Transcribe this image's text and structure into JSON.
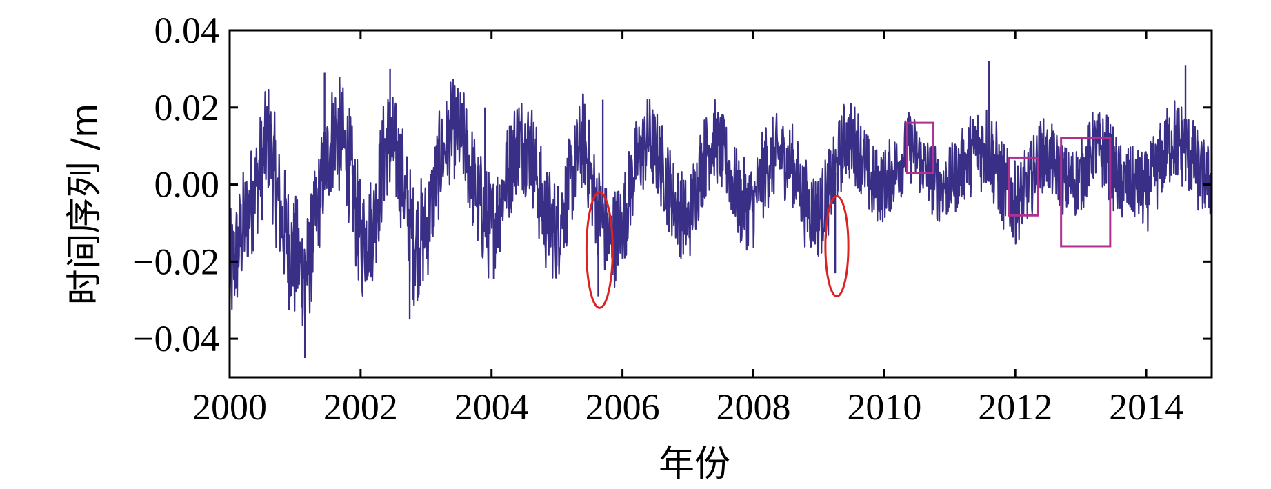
{
  "chart_data": {
    "type": "line",
    "title": "",
    "xlabel": "年份",
    "ylabel": "时间序列 /m",
    "xlim": [
      2000,
      2015
    ],
    "ylim": [
      -0.05,
      0.04
    ],
    "x_ticks": [
      2000,
      2002,
      2004,
      2006,
      2008,
      2010,
      2012,
      2014
    ],
    "x_tick_labels": [
      "2000",
      "2002",
      "2004",
      "2006",
      "2008",
      "2010",
      "2012",
      "2014"
    ],
    "y_ticks": [
      0.04,
      0.02,
      0.0,
      -0.02,
      -0.04
    ],
    "y_tick_labels": [
      "0.04",
      "0.02",
      "0.00",
      "−0.02",
      "−0.04"
    ],
    "grid": false,
    "series_color": "#3a2f86",
    "series": [
      {
        "x": [
          2000.0,
          2000.2,
          2000.4,
          2000.6,
          2000.8,
          2001.0,
          2001.2,
          2001.4,
          2001.6,
          2001.8,
          2002.0,
          2002.2,
          2002.4,
          2002.6,
          2002.8,
          2003.0,
          2003.2,
          2003.4,
          2003.6,
          2003.8,
          2004.0,
          2004.2,
          2004.4,
          2004.6,
          2004.8,
          2005.0,
          2005.2,
          2005.4,
          2005.6,
          2005.8,
          2006.0,
          2006.2,
          2006.4,
          2006.6,
          2006.8,
          2007.0,
          2007.2,
          2007.4,
          2007.6,
          2007.8,
          2008.0,
          2008.2,
          2008.4,
          2008.6,
          2008.8,
          2009.0,
          2009.2,
          2009.4,
          2009.6,
          2009.8,
          2010.0,
          2010.2,
          2010.4,
          2010.6,
          2010.8,
          2011.0,
          2011.2,
          2011.4,
          2011.6,
          2011.8,
          2012.0,
          2012.2,
          2012.4,
          2012.6,
          2012.8,
          2013.0,
          2013.2,
          2013.4,
          2013.6,
          2013.8,
          2014.0,
          2014.2,
          2014.4,
          2014.6,
          2014.8,
          2015.0
        ],
        "y": [
          -0.025,
          -0.012,
          0.0,
          0.012,
          -0.01,
          -0.02,
          -0.022,
          0.0,
          0.015,
          0.008,
          -0.015,
          -0.01,
          0.012,
          0.005,
          -0.015,
          -0.012,
          0.005,
          0.015,
          0.01,
          -0.005,
          -0.012,
          0.0,
          0.012,
          0.01,
          -0.008,
          -0.012,
          0.0,
          0.012,
          -0.005,
          -0.015,
          -0.01,
          0.005,
          0.012,
          0.005,
          -0.005,
          -0.01,
          0.005,
          0.012,
          0.005,
          -0.005,
          -0.005,
          0.005,
          0.008,
          0.005,
          -0.005,
          -0.008,
          0.0,
          0.012,
          0.01,
          0.0,
          0.0,
          0.005,
          0.01,
          0.005,
          0.0,
          0.0,
          0.005,
          0.01,
          0.01,
          0.0,
          -0.005,
          0.0,
          0.008,
          0.005,
          0.0,
          0.002,
          0.01,
          0.008,
          0.0,
          0.0,
          -0.002,
          0.005,
          0.012,
          0.01,
          0.003,
          0.0
        ],
        "envelope": [
          0.018,
          0.016,
          0.015,
          0.016,
          0.017,
          0.018,
          0.016,
          0.014,
          0.016,
          0.016,
          0.016,
          0.015,
          0.016,
          0.015,
          0.017,
          0.015,
          0.014,
          0.013,
          0.014,
          0.015,
          0.015,
          0.014,
          0.014,
          0.014,
          0.015,
          0.014,
          0.013,
          0.013,
          0.013,
          0.014,
          0.013,
          0.012,
          0.012,
          0.012,
          0.012,
          0.012,
          0.012,
          0.011,
          0.011,
          0.012,
          0.012,
          0.012,
          0.011,
          0.011,
          0.012,
          0.012,
          0.011,
          0.011,
          0.011,
          0.011,
          0.01,
          0.01,
          0.01,
          0.01,
          0.01,
          0.01,
          0.01,
          0.012,
          0.013,
          0.012,
          0.011,
          0.01,
          0.01,
          0.01,
          0.01,
          0.01,
          0.01,
          0.011,
          0.011,
          0.01,
          0.011,
          0.011,
          0.012,
          0.012,
          0.011,
          0.01
        ],
        "spikes": [
          [
            2001.15,
            -0.045
          ],
          [
            2001.45,
            0.029
          ],
          [
            2002.45,
            0.03
          ],
          [
            2002.75,
            -0.035
          ],
          [
            2003.9,
            0.02
          ],
          [
            2005.63,
            -0.029
          ],
          [
            2005.7,
            0.022
          ],
          [
            2009.25,
            -0.023
          ],
          [
            2011.6,
            0.032
          ],
          [
            2014.6,
            0.031
          ]
        ]
      }
    ],
    "annotations": [
      {
        "shape": "ellipse",
        "color": "#dd2222",
        "x_range": [
          2005.45,
          2005.85
        ],
        "y_range": [
          -0.032,
          -0.002
        ]
      },
      {
        "shape": "ellipse",
        "color": "#dd2222",
        "x_range": [
          2009.1,
          2009.45
        ],
        "y_range": [
          -0.029,
          -0.003
        ]
      },
      {
        "shape": "rect",
        "color": "#b03090",
        "x_range": [
          2010.35,
          2010.75
        ],
        "y_range": [
          0.003,
          0.016
        ]
      },
      {
        "shape": "rect",
        "color": "#b03090",
        "x_range": [
          2011.9,
          2012.35
        ],
        "y_range": [
          -0.008,
          0.007
        ]
      },
      {
        "shape": "rect",
        "color": "#b03090",
        "x_range": [
          2012.7,
          2013.45
        ],
        "y_range": [
          -0.016,
          0.012
        ]
      }
    ]
  }
}
